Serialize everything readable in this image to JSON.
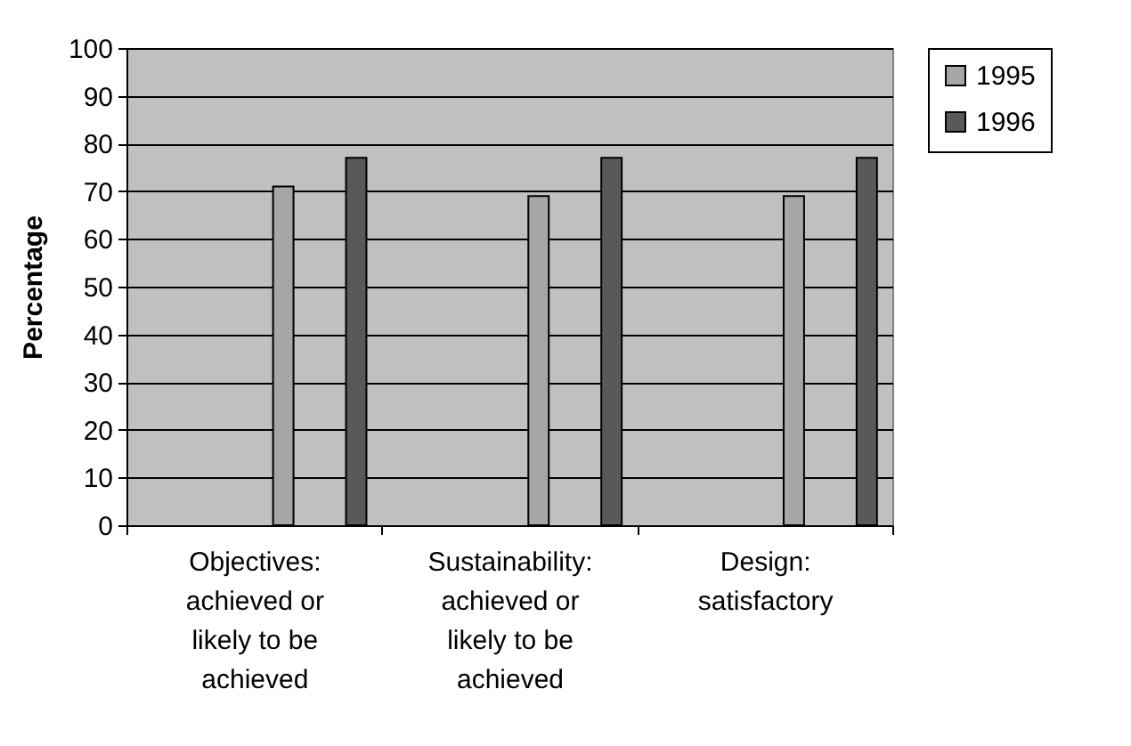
{
  "chart_data": {
    "type": "bar",
    "ylabel": "Percentage",
    "categories": [
      "Objectives: achieved or likely to be achieved",
      "Sustainability: achieved or likely to be achieved",
      "Design: satisfactory"
    ],
    "series": [
      {
        "name": "1995",
        "color": "#a6a6a6",
        "values": [
          71,
          69,
          69
        ]
      },
      {
        "name": "1996",
        "color": "#595959",
        "values": [
          77,
          77,
          77
        ]
      }
    ],
    "ylim": [
      0,
      100
    ],
    "yticks": [
      0,
      10,
      20,
      30,
      40,
      50,
      60,
      70,
      80,
      90,
      100
    ],
    "grid": "y",
    "legend": "right"
  }
}
